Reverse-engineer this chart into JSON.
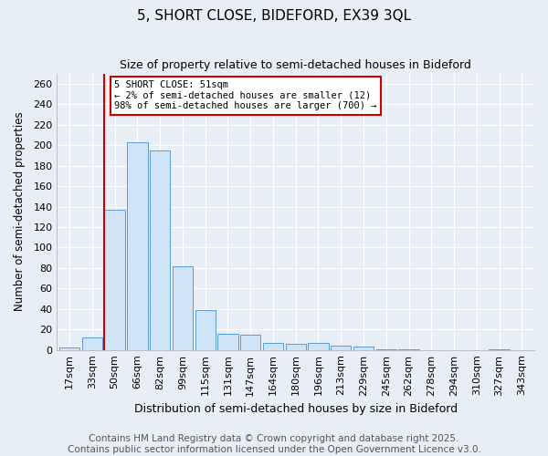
{
  "title": "5, SHORT CLOSE, BIDEFORD, EX39 3QL",
  "subtitle": "Size of property relative to semi-detached houses in Bideford",
  "xlabel": "Distribution of semi-detached houses by size in Bideford",
  "ylabel": "Number of semi-detached properties",
  "categories": [
    "17sqm",
    "33sqm",
    "50sqm",
    "66sqm",
    "82sqm",
    "99sqm",
    "115sqm",
    "131sqm",
    "147sqm",
    "164sqm",
    "180sqm",
    "196sqm",
    "213sqm",
    "229sqm",
    "245sqm",
    "262sqm",
    "278sqm",
    "294sqm",
    "310sqm",
    "327sqm",
    "343sqm"
  ],
  "values": [
    2,
    12,
    137,
    203,
    195,
    82,
    39,
    16,
    15,
    7,
    6,
    7,
    4,
    3,
    1,
    1,
    0,
    0,
    0,
    1,
    0
  ],
  "bar_color": "#d0e4f7",
  "bar_edge_color": "#5b9bd5",
  "vline_color": "#cc0000",
  "annotation_title": "5 SHORT CLOSE: 51sqm",
  "annotation_line1": "← 2% of semi-detached houses are smaller (12)",
  "annotation_line2": "98% of semi-detached houses are larger (700) →",
  "annotation_box_color": "white",
  "annotation_box_edge_color": "#cc0000",
  "ylim": [
    0,
    270
  ],
  "yticks": [
    0,
    20,
    40,
    60,
    80,
    100,
    120,
    140,
    160,
    180,
    200,
    220,
    240,
    260
  ],
  "background_color": "#e8eef5",
  "grid_color": "white",
  "footer_line1": "Contains HM Land Registry data © Crown copyright and database right 2025.",
  "footer_line2": "Contains public sector information licensed under the Open Government Licence v3.0.",
  "title_fontsize": 11,
  "xlabel_fontsize": 9,
  "ylabel_fontsize": 8.5,
  "tick_fontsize": 8,
  "footer_fontsize": 7.5
}
